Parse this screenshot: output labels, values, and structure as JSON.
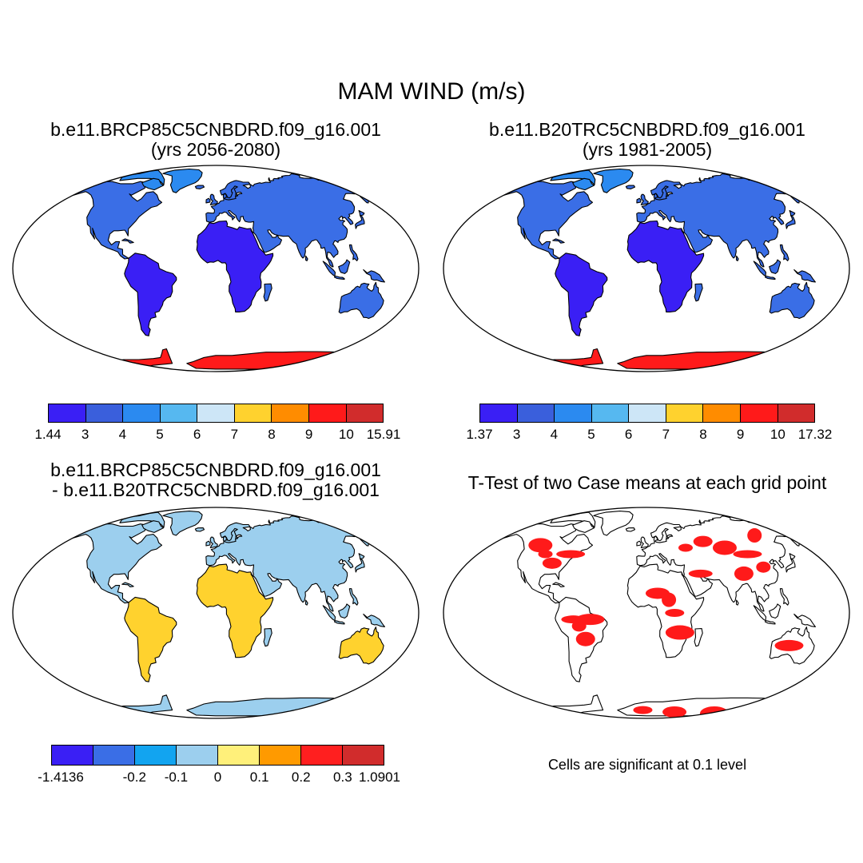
{
  "title": "MAM WIND (m/s)",
  "panels": {
    "top_left": {
      "title_line1": "b.e11.BRCP85C5CNBDRD.f09_g16.001",
      "title_line2": "(yrs 2056-2080)"
    },
    "top_right": {
      "title_line1": "b.e11.B20TRC5CNBDRD.f09_g16.001",
      "title_line2": "(yrs 1981-2005)"
    },
    "bottom_left": {
      "title_line1": "b.e11.BRCP85C5CNBDRD.f09_g16.001",
      "title_line2": "- b.e11.B20TRC5CNBDRD.f09_g16.001"
    },
    "bottom_right": {
      "title_line1": "T-Test of two Case means at each grid point"
    }
  },
  "legends": {
    "top_left": {
      "colors": [
        "#3a1ff5",
        "#3a5fdc",
        "#2b8af0",
        "#56b8f0",
        "#cde6f7",
        "#ffd22e",
        "#ff8c00",
        "#ff1a1a",
        "#d12c2c"
      ],
      "labels": [
        "1.44",
        "3",
        "4",
        "5",
        "6",
        "7",
        "8",
        "9",
        "10",
        "15.91"
      ]
    },
    "top_right": {
      "colors": [
        "#3a1ff5",
        "#3a5fdc",
        "#2b8af0",
        "#56b8f0",
        "#cde6f7",
        "#ffd22e",
        "#ff8c00",
        "#ff1a1a",
        "#d12c2c"
      ],
      "labels": [
        "1.37",
        "3",
        "4",
        "5",
        "6",
        "7",
        "8",
        "9",
        "10",
        "17.32"
      ]
    },
    "bottom_left": {
      "colors": [
        "#3a1ff5",
        "#3a6ee6",
        "#12a4f0",
        "#9ccfee",
        "#fff07a",
        "#ff9a00",
        "#ff1f1f",
        "#d12c2c"
      ],
      "labels": [
        "-1.4136",
        "-0.2",
        "-0.1",
        "0",
        "0.1",
        "0.2",
        "0.3",
        "1.0901"
      ]
    }
  },
  "significance_note": "Cells are significant at 0.1 level",
  "map_fill_colors": {
    "wind_land": "#3a6ee6",
    "wind_tropics": "#3a1ff5",
    "wind_high_lat": "#2b8af0",
    "wind_antarctica": "#ff1a1a",
    "diff_land": "#9ccfee",
    "diff_warm": "#ffd22e",
    "significant": "#ff1a1a"
  }
}
